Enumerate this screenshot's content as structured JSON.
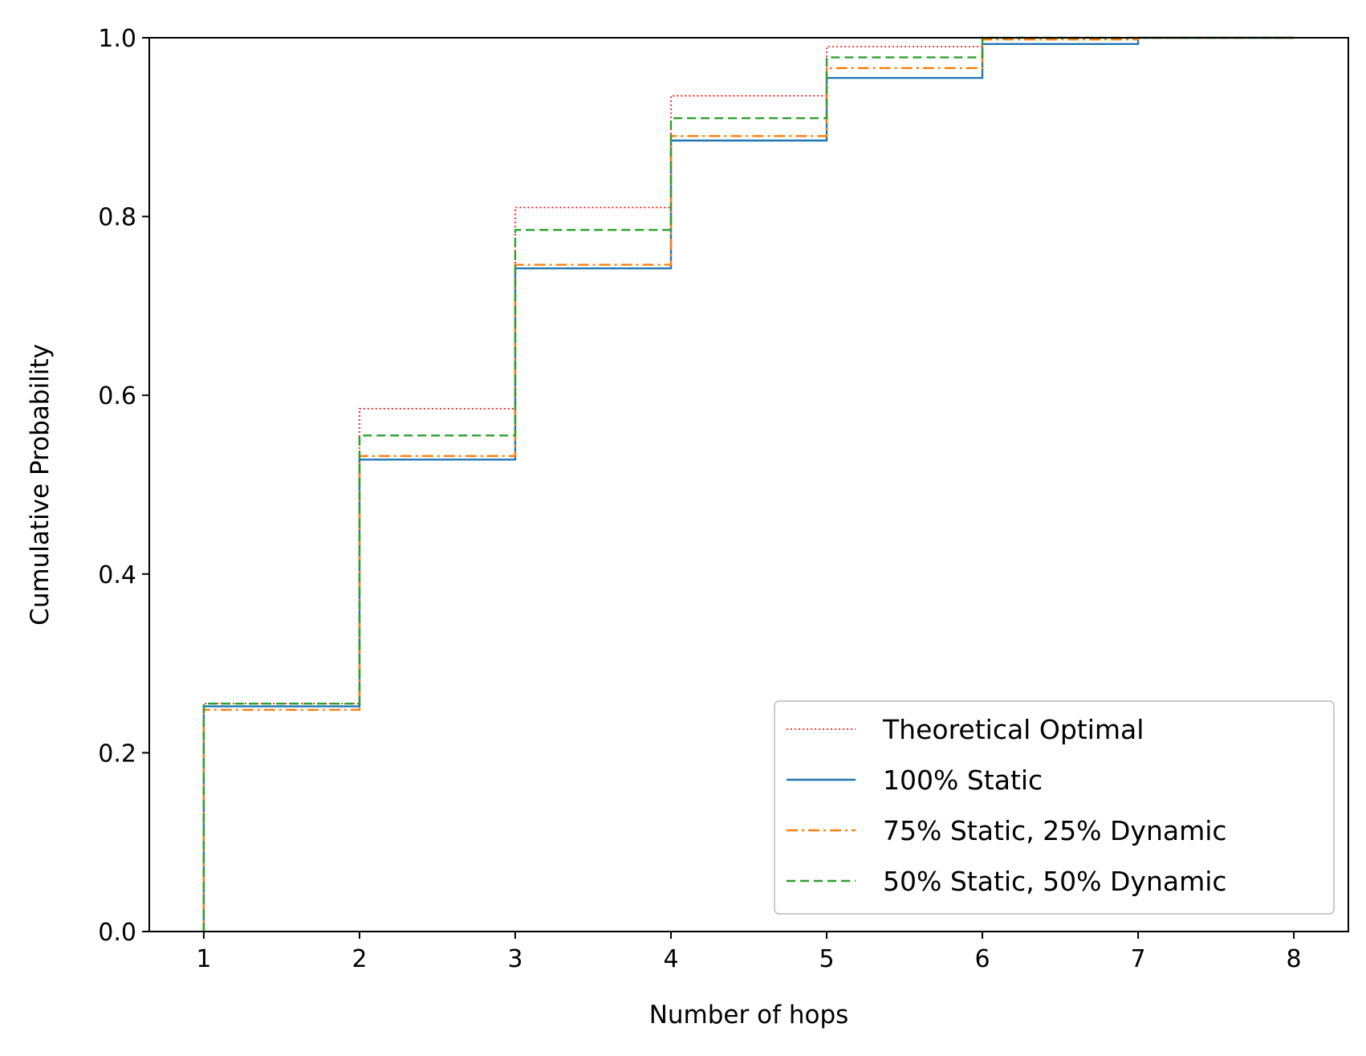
{
  "chart_data": {
    "type": "line",
    "step": "post",
    "xlabel": "Number of hops",
    "ylabel": "Cumulative Probability",
    "xlim": [
      0.65,
      8.35
    ],
    "ylim": [
      0.0,
      1.0
    ],
    "xticks": [
      1,
      2,
      3,
      4,
      5,
      6,
      7,
      8
    ],
    "yticks": [
      0.0,
      0.2,
      0.4,
      0.6,
      0.8,
      1.0
    ],
    "grid": false,
    "legend_position": "lower-right",
    "series": [
      {
        "name": "Theoretical Optimal",
        "color": "#ff0000",
        "style": "dotted",
        "x": [
          1,
          1,
          2,
          3,
          4,
          5,
          6,
          7,
          8
        ],
        "y": [
          0.0,
          0.255,
          0.585,
          0.81,
          0.935,
          0.99,
          1.0,
          1.0,
          1.0
        ]
      },
      {
        "name": "100% Static",
        "color": "#1f77b4",
        "style": "solid",
        "x": [
          1,
          1,
          2,
          3,
          4,
          5,
          6,
          7,
          8
        ],
        "y": [
          0.0,
          0.252,
          0.528,
          0.742,
          0.885,
          0.955,
          0.993,
          1.0,
          1.0
        ]
      },
      {
        "name": "75% Static, 25% Dynamic",
        "color": "#ff7f0e",
        "style": "dashdot",
        "x": [
          1,
          1,
          2,
          3,
          4,
          5,
          6,
          7,
          8
        ],
        "y": [
          0.0,
          0.248,
          0.532,
          0.746,
          0.89,
          0.966,
          0.998,
          1.0,
          1.0
        ]
      },
      {
        "name": "50% Static, 50% Dynamic",
        "color": "#2ca02c",
        "style": "dashed",
        "x": [
          1,
          1,
          2,
          3,
          4,
          5,
          6,
          7,
          8
        ],
        "y": [
          0.0,
          0.255,
          0.555,
          0.785,
          0.91,
          0.978,
          1.0,
          1.0,
          1.0
        ]
      }
    ]
  }
}
